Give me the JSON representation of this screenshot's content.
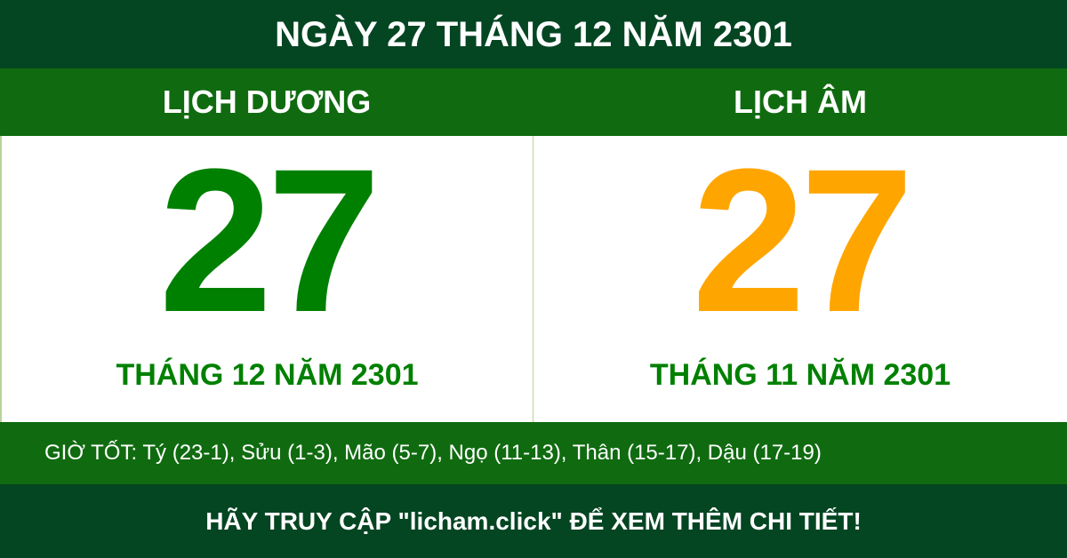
{
  "title": "NGÀY 27 THÁNG 12 NĂM 2301",
  "solar": {
    "label": "LỊCH DƯƠNG",
    "day": "27",
    "month_year": "THÁNG 12 NĂM 2301",
    "color": "#008000"
  },
  "lunar": {
    "label": "LỊCH ÂM",
    "day": "27",
    "month_year": "THÁNG 11 NĂM 2301",
    "color": "#ffa500"
  },
  "good_hours": "GIỜ TỐT: Tý (23-1), Sửu (1-3), Mão (5-7), Ngọ (11-13), Thân (15-17), Dậu (17-19)",
  "footer": "HÃY TRUY CẬP \"licham.click\" ĐỂ XEM THÊM CHI TIẾT!",
  "colors": {
    "dark_green": "#044522",
    "green": "#106b10"
  }
}
